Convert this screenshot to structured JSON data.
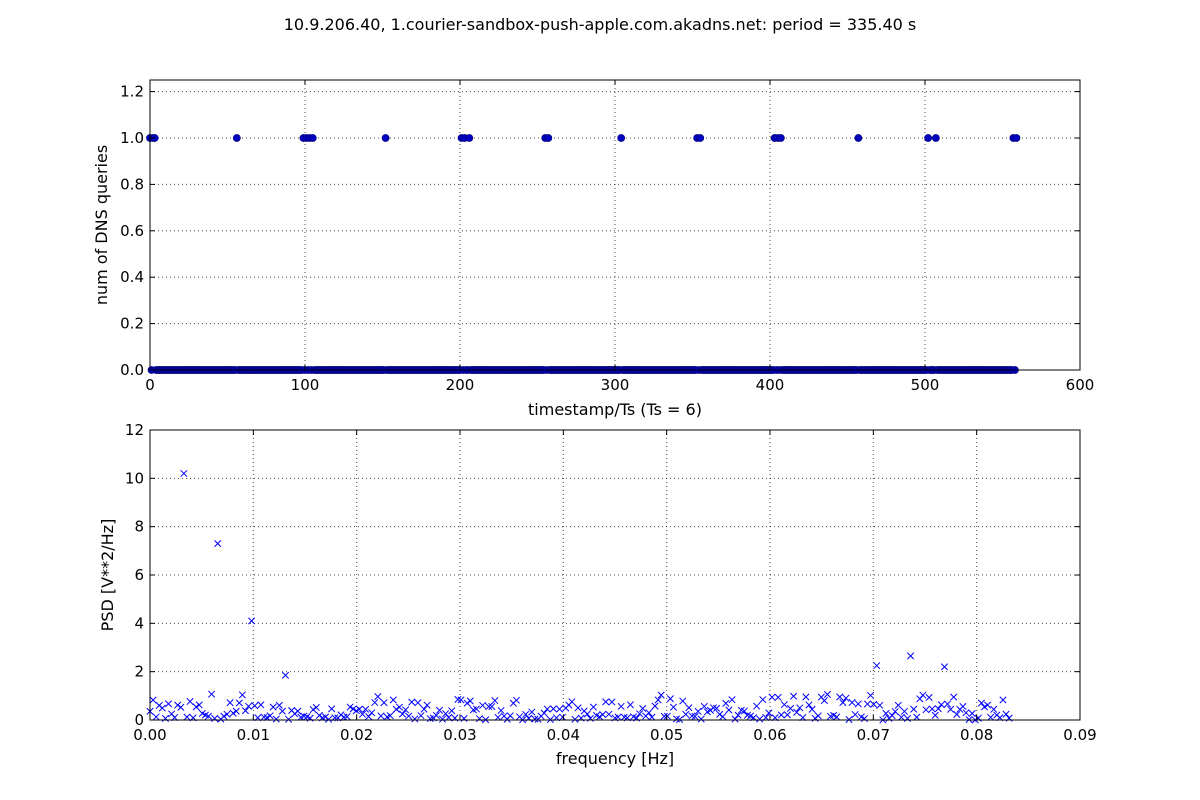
{
  "figure": {
    "title": "10.9.206.40, 1.courier-sandbox-push-apple.com.akadns.net: period = 335.40 s"
  },
  "chart_data": [
    {
      "type": "scatter",
      "xlabel": "timestamp/Ts (Ts = 6)",
      "ylabel": "num of DNS queries",
      "xlim": [
        0,
        600
      ],
      "ylim": [
        0,
        1.25
      ],
      "xticks": [
        0,
        100,
        200,
        300,
        400,
        500,
        600
      ],
      "yticks": [
        0.0,
        0.2,
        0.4,
        0.6,
        0.8,
        1.0,
        1.2
      ],
      "xtick_labels": [
        "0",
        "100",
        "200",
        "300",
        "400",
        "500",
        "600"
      ],
      "ytick_labels": [
        "0.0",
        "0.2",
        "0.4",
        "0.6",
        "0.8",
        "1.0",
        "1.2"
      ],
      "grid": true,
      "marker": "circle",
      "color": "#0000bf",
      "zero_run": [
        0,
        558
      ],
      "ones_x": [
        0,
        2,
        3,
        56,
        99,
        101,
        103,
        105,
        152,
        201,
        203,
        206,
        255,
        257,
        304,
        353,
        355,
        403,
        405,
        407,
        457,
        502,
        507,
        557,
        559
      ]
    },
    {
      "type": "scatter",
      "xlabel": "frequency [Hz]",
      "ylabel": "PSD [V**2/Hz]",
      "xlim": [
        0,
        0.09
      ],
      "ylim": [
        0,
        12
      ],
      "xticks": [
        0,
        0.01,
        0.02,
        0.03,
        0.04,
        0.05,
        0.06,
        0.07,
        0.08,
        0.09
      ],
      "yticks": [
        0,
        2,
        4,
        6,
        8,
        10,
        12
      ],
      "xtick_labels": [
        "0.00",
        "0.01",
        "0.02",
        "0.03",
        "0.04",
        "0.05",
        "0.06",
        "0.07",
        "0.08",
        "0.09"
      ],
      "ytick_labels": [
        "0",
        "2",
        "4",
        "6",
        "8",
        "10",
        "12"
      ],
      "grid": true,
      "marker": "x",
      "color": "#0000ff",
      "x_step": 0.000298,
      "x_count": 280,
      "peaks": [
        {
          "x": 0.0033,
          "y": 10.2
        },
        {
          "x": 0.0066,
          "y": 7.3
        },
        {
          "x": 0.0099,
          "y": 4.1
        },
        {
          "x": 0.0132,
          "y": 1.85
        },
        {
          "x": 0.0704,
          "y": 2.25
        },
        {
          "x": 0.0737,
          "y": 2.65
        },
        {
          "x": 0.077,
          "y": 2.2
        }
      ]
    }
  ]
}
